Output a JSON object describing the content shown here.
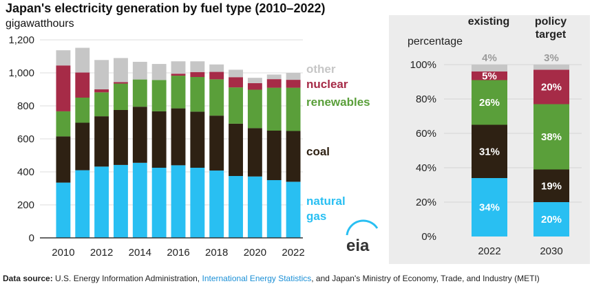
{
  "title": "Japan's electricity generation by fuel type (2010–2022)",
  "left_chart": {
    "ylabel": "gigawatthours",
    "y_ticks": [
      "0",
      "200",
      "400",
      "600",
      "800",
      "1,000",
      "1,200"
    ],
    "x_ticks": [
      "2010",
      "2012",
      "2014",
      "2016",
      "2018",
      "2020",
      "2022"
    ]
  },
  "right_chart": {
    "ylabel": "percentage",
    "y_ticks": [
      "0%",
      "20%",
      "40%",
      "60%",
      "80%",
      "100%"
    ],
    "columns": [
      {
        "header": "existing",
        "x_label": "2022"
      },
      {
        "header": "policy target",
        "x_label": "2030"
      }
    ]
  },
  "legend": {
    "other": "other",
    "nuclear": "nuclear",
    "renewables": "renewables",
    "coal": "coal",
    "natural_gas_line1": "natural",
    "natural_gas_line2": "gas"
  },
  "logo_text": "eia",
  "source": {
    "prefix": "Data source:",
    "text1": "U.S. Energy Information Administration,",
    "link": "International Energy Statistics",
    "text2": ", and Japan's Ministry of Economy, Trade, and Industry (METI)"
  },
  "colors": {
    "natural_gas": "#29bff2",
    "coal": "#2e2113",
    "renewables": "#5a9f3a",
    "nuclear": "#a62b47",
    "other": "#c6c6c6",
    "panel_background": "#ececec"
  },
  "chart_data": [
    {
      "type": "bar",
      "stacked": true,
      "title": "Japan's electricity generation by fuel type (2010–2022)",
      "ylabel": "gigawatthours",
      "ylim": [
        0,
        1200
      ],
      "categories": [
        "2010",
        "2011",
        "2012",
        "2013",
        "2014",
        "2015",
        "2016",
        "2017",
        "2018",
        "2019",
        "2020",
        "2021",
        "2022"
      ],
      "series": [
        {
          "name": "natural gas",
          "values": [
            335,
            410,
            432,
            442,
            455,
            425,
            440,
            425,
            408,
            375,
            372,
            350,
            340
          ]
        },
        {
          "name": "coal",
          "values": [
            280,
            288,
            305,
            333,
            340,
            342,
            345,
            340,
            333,
            317,
            293,
            300,
            308
          ]
        },
        {
          "name": "renewables",
          "values": [
            152,
            152,
            145,
            160,
            165,
            190,
            198,
            210,
            220,
            220,
            233,
            260,
            262
          ]
        },
        {
          "name": "nuclear",
          "values": [
            278,
            152,
            18,
            9,
            0,
            0,
            12,
            30,
            45,
            62,
            40,
            52,
            48
          ]
        },
        {
          "name": "other",
          "values": [
            92,
            150,
            178,
            146,
            107,
            97,
            75,
            65,
            45,
            45,
            32,
            28,
            42
          ]
        }
      ]
    },
    {
      "type": "bar",
      "stacked": true,
      "ylabel": "percentage",
      "ylim": [
        0,
        100
      ],
      "categories": [
        "2022",
        "2030"
      ],
      "series": [
        {
          "name": "natural gas",
          "values": [
            34,
            20
          ],
          "labels": [
            "34%",
            "20%"
          ]
        },
        {
          "name": "coal",
          "values": [
            31,
            19
          ],
          "labels": [
            "31%",
            "19%"
          ]
        },
        {
          "name": "renewables",
          "values": [
            26,
            38
          ],
          "labels": [
            "26%",
            "38%"
          ]
        },
        {
          "name": "nuclear",
          "values": [
            5,
            20
          ],
          "labels": [
            "5%",
            "20%"
          ]
        },
        {
          "name": "other",
          "values": [
            4,
            3
          ],
          "labels": [
            "4%",
            "3%"
          ]
        }
      ]
    }
  ]
}
